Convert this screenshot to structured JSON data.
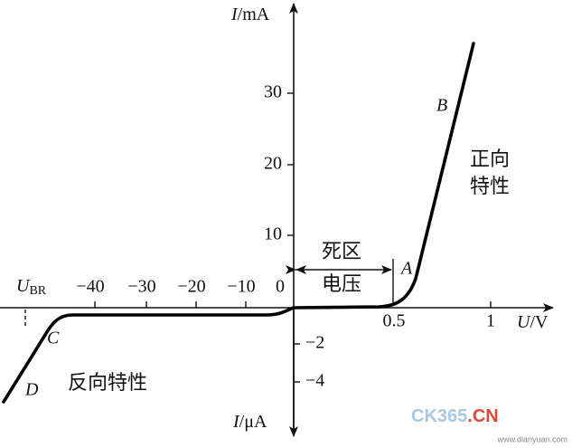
{
  "axes": {
    "y_positive_label": {
      "symbol": "I",
      "unit": "/mA"
    },
    "y_negative_label": {
      "symbol": "I",
      "unit": "/μA"
    },
    "x_label": {
      "symbol": "U",
      "unit": "/V"
    },
    "origin": "0",
    "y_ticks_positive": [
      "10",
      "20",
      "30"
    ],
    "y_ticks_negative": [
      "−2",
      "−4"
    ],
    "x_ticks_negative": [
      "−40",
      "−30",
      "−20",
      "−10"
    ],
    "x_ticks_positive": [
      "0.5",
      "1"
    ]
  },
  "breakdown": {
    "symbol": "U",
    "subscript": "BR"
  },
  "points": {
    "A": "A",
    "B": "B",
    "C": "C",
    "D": "D"
  },
  "regions": {
    "forward": [
      "正向",
      "特性"
    ],
    "dead_zone": [
      "死区",
      "电压"
    ],
    "reverse": "反向特性"
  },
  "watermark": {
    "main": "CK365",
    "suffix": ".CN",
    "url": "www.dianyuan.com"
  }
}
